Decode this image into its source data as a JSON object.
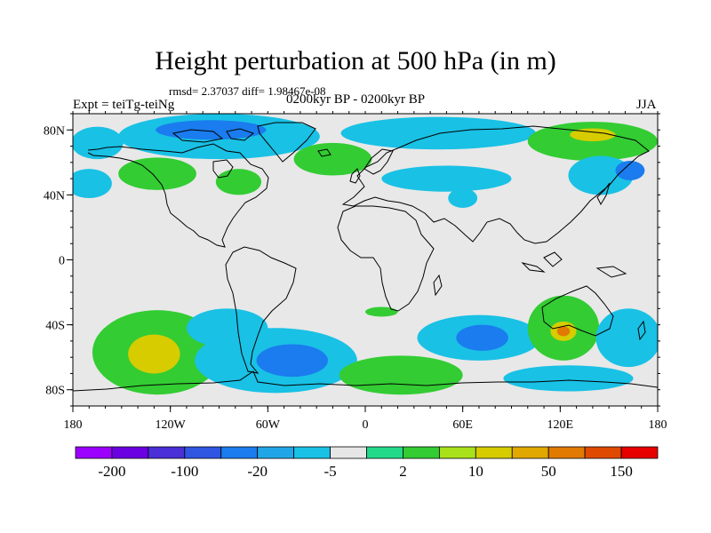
{
  "title": "Height perturbation at 500 hPa (in m)",
  "stats_text": "rmsd= 2.37037 diff= 1.98467e-08",
  "experiment_label": "Expt = teiTg-teiNg",
  "period_label": "0200kyr BP - 0200kyr BP",
  "season_label": "JJA",
  "map": {
    "projection": "cylindrical equidistant",
    "lon_range": [
      -180,
      180
    ],
    "lat_range": [
      -90,
      90
    ],
    "background_color": "#e8e8e8",
    "x_ticks": [
      {
        "value": -180,
        "label": "180"
      },
      {
        "value": -120,
        "label": "120W"
      },
      {
        "value": -60,
        "label": "60W"
      },
      {
        "value": 0,
        "label": "0"
      },
      {
        "value": 60,
        "label": "60E"
      },
      {
        "value": 120,
        "label": "120E"
      },
      {
        "value": 180,
        "label": "180"
      }
    ],
    "y_ticks": [
      {
        "value": 80,
        "label": "80N"
      },
      {
        "value": 40,
        "label": "40N"
      },
      {
        "value": 0,
        "label": "0"
      },
      {
        "value": -40,
        "label": "40S"
      },
      {
        "value": -80,
        "label": "80S"
      }
    ],
    "anomalies": [
      {
        "lon": -165,
        "lat": 72,
        "rx": 16,
        "ry": 10,
        "level": "-5"
      },
      {
        "lon": -170,
        "lat": 47,
        "rx": 14,
        "ry": 9,
        "level": "-5"
      },
      {
        "lon": -90,
        "lat": 76,
        "rx": 62,
        "ry": 14,
        "level": "-5"
      },
      {
        "lon": -95,
        "lat": 80,
        "rx": 34,
        "ry": 6,
        "level": "-20"
      },
      {
        "lon": -128,
        "lat": 53,
        "rx": 24,
        "ry": 10,
        "level": "2"
      },
      {
        "lon": -78,
        "lat": 48,
        "rx": 14,
        "ry": 8,
        "level": "2"
      },
      {
        "lon": -20,
        "lat": 62,
        "rx": 24,
        "ry": 10,
        "level": "2"
      },
      {
        "lon": 45,
        "lat": 78,
        "rx": 60,
        "ry": 10,
        "level": "-5"
      },
      {
        "lon": 50,
        "lat": 50,
        "rx": 40,
        "ry": 8,
        "level": "-5"
      },
      {
        "lon": 60,
        "lat": 38,
        "rx": 9,
        "ry": 6,
        "level": "-5"
      },
      {
        "lon": 140,
        "lat": 73,
        "rx": 40,
        "ry": 12,
        "level": "2"
      },
      {
        "lon": 140,
        "lat": 77,
        "rx": 14,
        "ry": 4,
        "level": "10"
      },
      {
        "lon": 145,
        "lat": 52,
        "rx": 20,
        "ry": 12,
        "level": "-5"
      },
      {
        "lon": 163,
        "lat": 55,
        "rx": 9,
        "ry": 6,
        "level": "-20"
      },
      {
        "lon": -128,
        "lat": -57,
        "rx": 40,
        "ry": 26,
        "level": "2"
      },
      {
        "lon": -130,
        "lat": -58,
        "rx": 16,
        "ry": 12,
        "level": "10"
      },
      {
        "lon": -85,
        "lat": -42,
        "rx": 25,
        "ry": 12,
        "level": "-5"
      },
      {
        "lon": -55,
        "lat": -62,
        "rx": 50,
        "ry": 20,
        "level": "-5"
      },
      {
        "lon": -45,
        "lat": -62,
        "rx": 22,
        "ry": 10,
        "level": "-20"
      },
      {
        "lon": 22,
        "lat": -71,
        "rx": 38,
        "ry": 12,
        "level": "2"
      },
      {
        "lon": 10,
        "lat": -32,
        "rx": 10,
        "ry": 3,
        "level": "2"
      },
      {
        "lon": 70,
        "lat": -48,
        "rx": 38,
        "ry": 14,
        "level": "-5"
      },
      {
        "lon": 72,
        "lat": -48,
        "rx": 16,
        "ry": 8,
        "level": "-20"
      },
      {
        "lon": 122,
        "lat": -42,
        "rx": 22,
        "ry": 20,
        "level": "2"
      },
      {
        "lon": 122,
        "lat": -44,
        "rx": 8,
        "ry": 6,
        "level": "10"
      },
      {
        "lon": 122,
        "lat": -44,
        "rx": 4,
        "ry": 3,
        "level": "50"
      },
      {
        "lon": 162,
        "lat": -48,
        "rx": 20,
        "ry": 18,
        "level": "-5"
      },
      {
        "lon": 125,
        "lat": -73,
        "rx": 40,
        "ry": 8,
        "level": "-5"
      }
    ]
  },
  "colorbar": {
    "colors": [
      "#9c00ff",
      "#6b00e0",
      "#4a30d6",
      "#2f55e3",
      "#1a7cee",
      "#20a6e6",
      "#19c1e5",
      "#e6e6e6",
      "#22d98a",
      "#33cc33",
      "#a8e01a",
      "#d6cc00",
      "#e0a800",
      "#e07a00",
      "#e04a00",
      "#e60000"
    ],
    "labels": [
      {
        "boundary": 1,
        "text": "-200"
      },
      {
        "boundary": 3,
        "text": "-100"
      },
      {
        "boundary": 5,
        "text": "-20"
      },
      {
        "boundary": 7,
        "text": "-5"
      },
      {
        "boundary": 9,
        "text": "2"
      },
      {
        "boundary": 11,
        "text": "10"
      },
      {
        "boundary": 13,
        "text": "50"
      },
      {
        "boundary": 15,
        "text": "150"
      }
    ]
  }
}
